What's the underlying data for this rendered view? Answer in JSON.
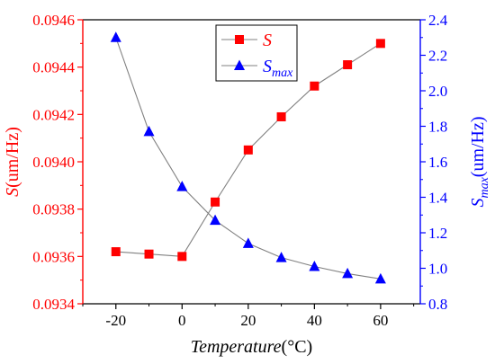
{
  "chart_data": {
    "type": "line",
    "x": [
      -20,
      -10,
      0,
      10,
      20,
      30,
      40,
      50,
      60
    ],
    "x_ticks": [
      "-20",
      "0",
      "20",
      "40",
      "60"
    ],
    "x_tick_values": [
      -20,
      0,
      20,
      40,
      60
    ],
    "xlim": [
      -30,
      72
    ],
    "xlabel": {
      "italic": "Temperature",
      "rest": "(°C)"
    },
    "left_axis": {
      "ylim": [
        0.0934,
        0.0946
      ],
      "ticks": [
        "0.0934",
        "0.0936",
        "0.0938",
        "0.0940",
        "0.0942",
        "0.0944",
        "0.0946"
      ],
      "tick_values": [
        0.0934,
        0.0936,
        0.0938,
        0.094,
        0.0942,
        0.0944,
        0.0946
      ],
      "label": {
        "italic": "S",
        "rest": "(um/Hz)"
      },
      "color": "#ff0000"
    },
    "right_axis": {
      "ylim": [
        0.8,
        2.4
      ],
      "ticks": [
        "0.8",
        "1.0",
        "1.2",
        "1.4",
        "1.6",
        "1.8",
        "2.0",
        "2.2",
        "2.4"
      ],
      "tick_values": [
        0.8,
        1.0,
        1.2,
        1.4,
        1.6,
        1.8,
        2.0,
        2.2,
        2.4
      ],
      "label": {
        "italic": "S",
        "sub": "max",
        "rest": "(um/Hz)"
      },
      "color": "#0000ff"
    },
    "series": [
      {
        "name": "S",
        "axis": "left",
        "marker": "square",
        "color": "#ff0000",
        "values": [
          0.09362,
          0.09361,
          0.0936,
          0.09383,
          0.09405,
          0.09419,
          0.09432,
          0.09441,
          0.0945
        ]
      },
      {
        "name": "S_max",
        "legend_label": {
          "italic": "S",
          "sub": "max"
        },
        "axis": "right",
        "marker": "triangle",
        "color": "#0000ff",
        "values": [
          2.3,
          1.77,
          1.46,
          1.27,
          1.14,
          1.06,
          1.01,
          0.97,
          0.94
        ]
      }
    ],
    "line_color": "#808080",
    "legend_position": "top-center",
    "grid": false
  }
}
